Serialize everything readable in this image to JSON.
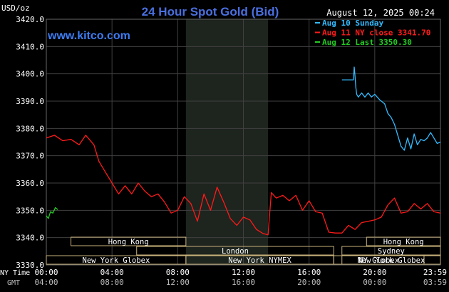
{
  "header": {
    "title": "24 Hour Spot Gold (Bid)",
    "unit_label": "USD/oz",
    "timestamp": "August 12, 2025 00:24",
    "site": "www.kitco.com"
  },
  "legend": [
    {
      "label": "Aug 10 Sunday",
      "color": "#33bbff"
    },
    {
      "label": "Aug 11 NY close 3341.70",
      "color": "#ff1a1a"
    },
    {
      "label": "Aug 12 Last 3350.30",
      "color": "#22cc22"
    }
  ],
  "axis_captions": {
    "ny_time": "NY Time",
    "gmt": "GMT"
  },
  "colors": {
    "background": "#000000",
    "grid": "#404040",
    "axis_text": "#ffffff",
    "title": "#4a6fe0",
    "site": "#3d7df5",
    "nymex_shade": "#1e241e",
    "session_box": "#c9b27a",
    "aug10": "#33bbff",
    "aug11": "#ff1a1a",
    "aug12": "#22cc22"
  },
  "sessions": [
    {
      "label": "Hong Kong",
      "lane": 0,
      "start": 1.5,
      "end": 8.5
    },
    {
      "label": "London",
      "lane": 1,
      "start": 5.5,
      "end": 17.5
    },
    {
      "label": "New York Globex",
      "lane": 2,
      "start": 0.0,
      "end": 8.5
    },
    {
      "label": "New York NYMEX",
      "lane": 2,
      "start": 8.5,
      "end": 17.5
    },
    {
      "label": "NY Globex",
      "lane": 2,
      "start": 17.5,
      "end": 23.0
    },
    {
      "label": "Hong Kong",
      "lane": 0,
      "start": 19.5,
      "end": 24.0
    },
    {
      "label": "Sydney",
      "lane": 1,
      "start": 18.0,
      "end": 24.0
    },
    {
      "label": "New York Globex",
      "lane": 2,
      "start": 18.0,
      "end": 24.0
    }
  ],
  "chart_data": {
    "type": "line",
    "title": "24 Hour Spot Gold (Bid)",
    "ylabel": "USD/oz",
    "ylim": [
      3330,
      3420
    ],
    "y_ticks": [
      "3330.0",
      "3340.0",
      "3350.0",
      "3360.0",
      "3370.0",
      "3380.0",
      "3390.0",
      "3400.0",
      "3410.0",
      "3420.0"
    ],
    "xlim": [
      0,
      24
    ],
    "x_ticks_ny": [
      "00:00",
      "04:00",
      "08:00",
      "12:00",
      "16:00",
      "20:00",
      "23:59"
    ],
    "x_ticks_gmt": [
      "04:00",
      "08:00",
      "12:00",
      "16:00",
      "20:00",
      "00:00",
      "03:59"
    ],
    "nymex_shade": [
      8.5,
      13.5
    ],
    "series": [
      {
        "name": "Aug 10 Sunday",
        "x": [
          18.0,
          18.7,
          18.75,
          18.8,
          18.85,
          18.9,
          19.0,
          19.2,
          19.4,
          19.6,
          19.8,
          20.0,
          20.3,
          20.6,
          20.8,
          21.0,
          21.2,
          21.4,
          21.6,
          21.8,
          22.0,
          22.2,
          22.4,
          22.6,
          22.8,
          23.0,
          23.2,
          23.4,
          23.6,
          23.8,
          24.0
        ],
        "y": [
          3397.8,
          3397.8,
          3402.5,
          3399.0,
          3395.0,
          3392.5,
          3391.5,
          3393.0,
          3391.5,
          3393.0,
          3391.5,
          3392.5,
          3390.5,
          3389.0,
          3385.5,
          3384.0,
          3381.5,
          3377.5,
          3373.5,
          3372.0,
          3376.5,
          3372.5,
          3378.0,
          3374.0,
          3376.0,
          3375.5,
          3376.5,
          3378.5,
          3376.5,
          3374.5,
          3375.0
        ]
      },
      {
        "name": "Aug 11 NY close 3341.70",
        "x": [
          0.0,
          0.5,
          1.0,
          1.5,
          2.0,
          2.4,
          2.9,
          3.2,
          3.6,
          4.0,
          4.4,
          4.8,
          5.2,
          5.6,
          6.0,
          6.4,
          6.8,
          7.2,
          7.6,
          8.0,
          8.4,
          8.8,
          9.2,
          9.6,
          10.0,
          10.4,
          10.8,
          11.2,
          11.6,
          12.0,
          12.4,
          12.8,
          13.2,
          13.5,
          13.7,
          14.0,
          14.4,
          14.8,
          15.2,
          15.6,
          16.0,
          16.4,
          16.8,
          17.2,
          17.6,
          18.0,
          18.4,
          18.8,
          19.2,
          19.6,
          20.0,
          20.4,
          20.8,
          21.2,
          21.6,
          22.0,
          22.4,
          22.8,
          23.2,
          23.6,
          24.0
        ],
        "y": [
          3376.5,
          3377.5,
          3375.5,
          3376.0,
          3374.0,
          3377.5,
          3374.0,
          3368.0,
          3364.0,
          3360.0,
          3356.0,
          3359.0,
          3356.0,
          3360.0,
          3357.0,
          3355.0,
          3356.0,
          3353.0,
          3349.0,
          3350.0,
          3355.0,
          3352.5,
          3346.0,
          3356.0,
          3350.0,
          3358.5,
          3353.0,
          3347.0,
          3344.5,
          3347.5,
          3346.5,
          3343.0,
          3341.5,
          3341.0,
          3356.5,
          3354.5,
          3355.5,
          3353.5,
          3355.5,
          3350.0,
          3353.5,
          3349.5,
          3349.0,
          3342.0,
          3341.7,
          3341.7,
          3344.5,
          3343.0,
          3345.5,
          3346.0,
          3346.5,
          3347.5,
          3352.0,
          3354.5,
          3349.0,
          3349.5,
          3352.5,
          3350.5,
          3352.5,
          3349.5,
          3349.0
        ]
      },
      {
        "name": "Aug 12 Last 3350.30",
        "x": [
          0.0,
          0.12,
          0.25,
          0.4,
          0.55,
          0.7
        ],
        "y": [
          3348.0,
          3347.0,
          3349.5,
          3349.0,
          3351.0,
          3350.3
        ]
      }
    ]
  }
}
